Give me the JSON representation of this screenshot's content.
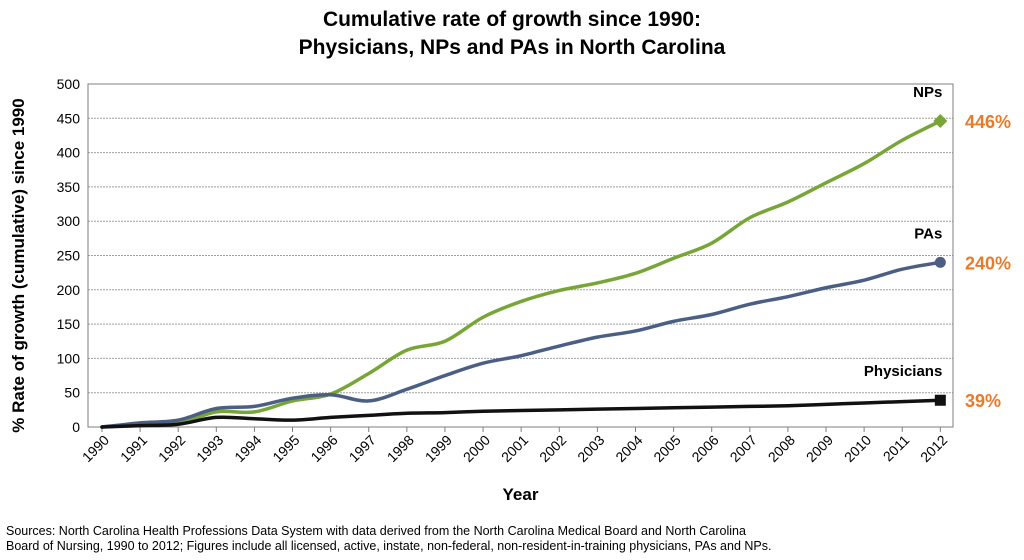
{
  "chart_data": {
    "type": "line",
    "title_line1": "Cumulative rate of growth since 1990:",
    "title_line2": "Physicians, NPs and PAs in North Carolina",
    "xlabel": "Year",
    "ylabel": "% Rate of growth (cumulative) since 1990",
    "ylim": [
      0,
      500
    ],
    "yticks": [
      "0",
      "50",
      "100",
      "150",
      "200",
      "250",
      "300",
      "350",
      "400",
      "450",
      "500"
    ],
    "categories": [
      "1990",
      "1991",
      "1992",
      "1993",
      "1994",
      "1995",
      "1996",
      "1997",
      "1998",
      "1999",
      "2000",
      "2001",
      "2002",
      "2003",
      "2004",
      "2005",
      "2006",
      "2007",
      "2008",
      "2009",
      "2010",
      "2011",
      "2012"
    ],
    "grid": true,
    "series": [
      {
        "name": "NPs",
        "color": "#77A637",
        "marker": "diamond",
        "end_label": "446%",
        "values": [
          0,
          3,
          5,
          22,
          22,
          38,
          48,
          78,
          112,
          125,
          160,
          183,
          199,
          210,
          224,
          246,
          268,
          305,
          328,
          356,
          384,
          418,
          446
        ]
      },
      {
        "name": "PAs",
        "color": "#4B5F85",
        "marker": "circle",
        "end_label": "240%",
        "values": [
          0,
          6,
          10,
          27,
          30,
          42,
          47,
          38,
          55,
          75,
          93,
          104,
          118,
          131,
          140,
          154,
          164,
          179,
          190,
          203,
          214,
          230,
          240
        ]
      },
      {
        "name": "Physicians",
        "color": "#111111",
        "marker": "square",
        "end_label": "39%",
        "values": [
          0,
          2,
          4,
          14,
          12,
          10,
          14,
          17,
          20,
          21,
          23,
          24,
          25,
          26,
          27,
          28,
          29,
          30,
          31,
          33,
          35,
          37,
          39
        ]
      }
    ],
    "end_label_color": "#E87B2A"
  },
  "source_line1": "Sources:  North Carolina Health Professions Data System with data derived from the North Carolina Medical Board and North Carolina",
  "source_line2": "Board of Nursing, 1990 to 2012; Figures include all licensed, active, instate, non-federal, non-resident-in-training physicians, PAs and NPs."
}
